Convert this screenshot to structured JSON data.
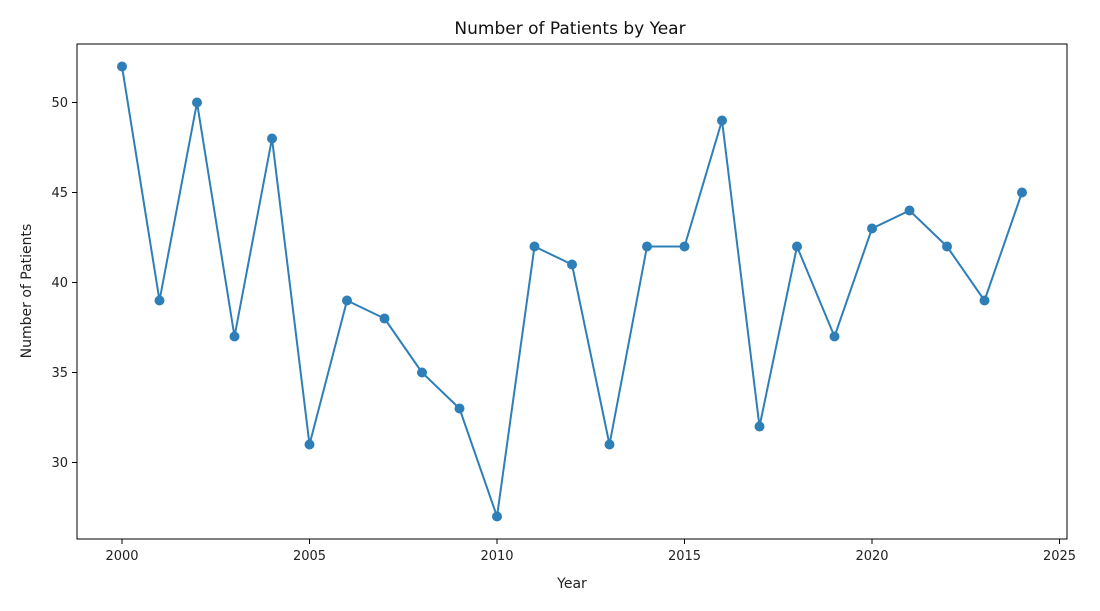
{
  "chart_data": {
    "type": "line",
    "title": "Number of Patients by Year",
    "xlabel": "Year",
    "ylabel": "Number of Patients",
    "x": [
      2000,
      2001,
      2002,
      2003,
      2004,
      2005,
      2006,
      2007,
      2008,
      2009,
      2010,
      2011,
      2012,
      2013,
      2014,
      2015,
      2016,
      2017,
      2018,
      2019,
      2020,
      2021,
      2022,
      2023,
      2024
    ],
    "series": [
      {
        "values": [
          52,
          39,
          50,
          37,
          48,
          31,
          39,
          38,
          35,
          33,
          27,
          42,
          41,
          31,
          42,
          42,
          49,
          32,
          42,
          37,
          43,
          44,
          42,
          39,
          45
        ],
        "color": "#2e7fb8",
        "marker": "circle"
      }
    ],
    "xticks": [
      2000,
      2005,
      2010,
      2015,
      2020,
      2025
    ],
    "yticks": [
      30,
      35,
      40,
      45,
      50
    ],
    "xlim": [
      1998.8,
      2025.2
    ],
    "ylim": [
      25.75,
      53.25
    ],
    "grid": false,
    "legend": "none"
  }
}
